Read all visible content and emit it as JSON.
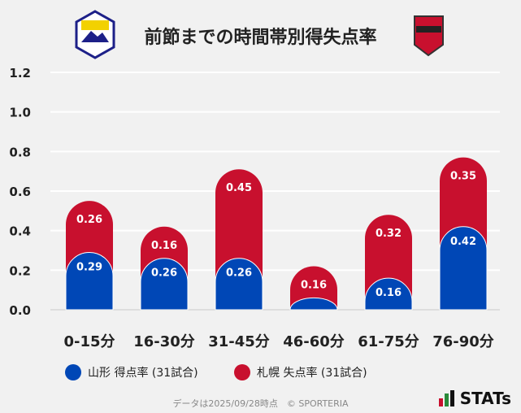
{
  "chart_data": {
    "type": "bar",
    "stacked": true,
    "title": "前節までの時間帯別得失点率",
    "categories": [
      "0-15分",
      "16-30分",
      "31-45分",
      "46-60分",
      "61-75分",
      "76-90分"
    ],
    "series": [
      {
        "name": "山形 得点率 (31試合)",
        "color": "#0047b6",
        "values": [
          0.29,
          0.26,
          0.26,
          0.06,
          0.16,
          0.42
        ],
        "labels": [
          "0.29",
          "0.26",
          "0.26",
          "",
          "0.16",
          "0.42"
        ]
      },
      {
        "name": "札幌 失点率 (31試合)",
        "color": "#c8102e",
        "values": [
          0.26,
          0.16,
          0.45,
          0.16,
          0.32,
          0.35
        ],
        "labels": [
          "0.26",
          "0.16",
          "0.45",
          "0.16",
          "0.32",
          "0.35"
        ]
      }
    ],
    "ylim": [
      0,
      1.2
    ],
    "yticks": [
      "0.0",
      "0.2",
      "0.4",
      "0.6",
      "0.8",
      "1.0",
      "1.2"
    ],
    "grid": true,
    "legend": "bottom"
  },
  "logos": {
    "home": "Montedio YAMAGATA",
    "away": "CONSADOLE SAPPORO"
  },
  "footer": "データは2025/09/28時点　© SPORTERIA",
  "brand": "STATs"
}
